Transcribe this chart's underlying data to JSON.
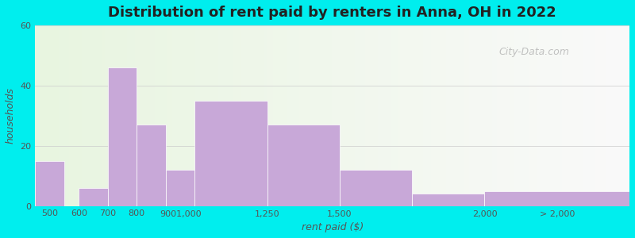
{
  "title": "Distribution of rent paid by renters in Anna, OH in 2022",
  "xlabel": "rent paid ($)",
  "ylabel": "households",
  "bar_color": "#c8a8d8",
  "background_color": "#00eeee",
  "ylim": [
    0,
    60
  ],
  "yticks": [
    0,
    20,
    40,
    60
  ],
  "bar_lefts": [
    450,
    550,
    600,
    700,
    800,
    900,
    1000,
    1250,
    1500,
    1750,
    2000
  ],
  "bar_rights": [
    550,
    600,
    700,
    800,
    900,
    1000,
    1250,
    1500,
    1750,
    2000,
    2500
  ],
  "bar_heights": [
    15,
    0,
    6,
    46,
    27,
    12,
    35,
    27,
    12,
    4,
    5
  ],
  "xtick_labels": [
    "500",
    "600",
    "700",
    "800",
    "9001,000",
    "1,250",
    "1,500",
    "2,000",
    "> 2,000"
  ],
  "xtick_positions": [
    500,
    600,
    700,
    800,
    950,
    1250,
    1500,
    2000,
    2250
  ],
  "watermark": "City-Data.com"
}
